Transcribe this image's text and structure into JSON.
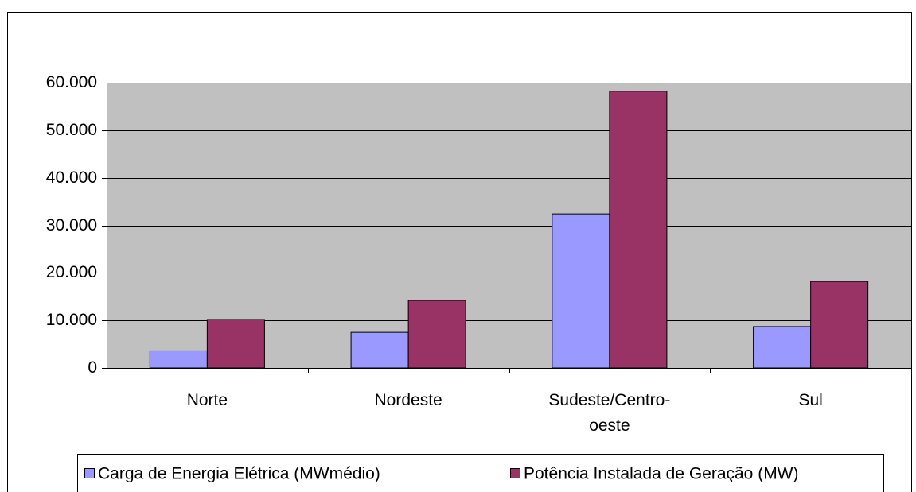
{
  "chart_data": {
    "type": "bar",
    "categories": [
      "Norte",
      "Nordeste",
      "Sudeste/Centro-oeste",
      "Sul"
    ],
    "series": [
      {
        "name": "Carga de Energia Elétrica (MWmédio)",
        "color": "#9999ff",
        "values": [
          3600,
          7500,
          32400,
          8700
        ]
      },
      {
        "name": "Potência Instalada de Geração (MW)",
        "color": "#993366",
        "values": [
          10200,
          14200,
          58200,
          18200
        ]
      }
    ],
    "ylim": [
      0,
      60000
    ],
    "yticks": [
      {
        "value": 0,
        "label": "0"
      },
      {
        "value": 10000,
        "label": "10.000"
      },
      {
        "value": 20000,
        "label": "20.000"
      },
      {
        "value": 30000,
        "label": "30.000"
      },
      {
        "value": 40000,
        "label": "40.000"
      },
      {
        "value": 50000,
        "label": "50.000"
      },
      {
        "value": 60000,
        "label": "60.000"
      }
    ],
    "grid": true,
    "plot_background": "#c0c0c0",
    "legend": "bottom"
  }
}
